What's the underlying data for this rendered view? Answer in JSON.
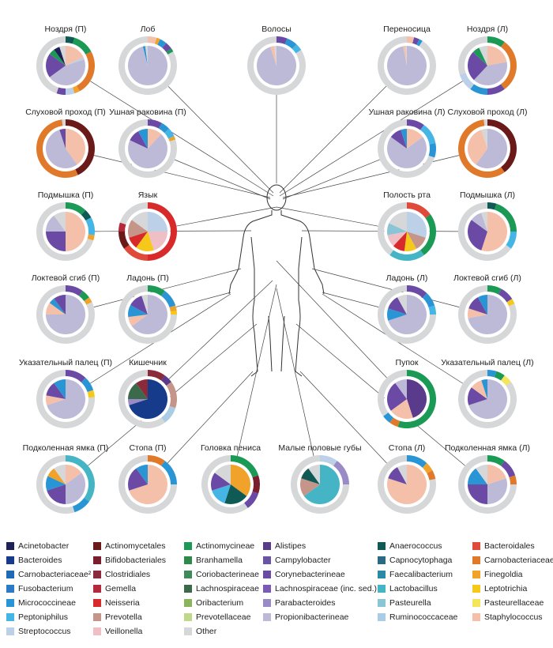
{
  "panels": [
    {
      "label": "Ноздря (П)",
      "pie": [
        [
          "Staphylococcus",
          0.18
        ],
        [
          "Streptococcus",
          0.02
        ],
        [
          "Propionibacterineae",
          0.45
        ],
        [
          "Corynebacterineae",
          0.2
        ],
        [
          "Actinomycineae",
          0.05
        ],
        [
          "Acinetobacter",
          0.05
        ],
        [
          "Other",
          0.05
        ]
      ],
      "ring": [
        [
          "Anaerococcus",
          0.05
        ],
        [
          "Actinomycineae",
          0.12
        ],
        [
          "Carnobacteriaceae",
          0.25
        ],
        [
          "Finegoldia",
          0.03
        ],
        [
          "Streptococcus",
          0.05
        ],
        [
          "Corynebacterineae",
          0.05
        ],
        [
          "Other",
          0.45
        ]
      ]
    },
    {
      "label": "Лоб",
      "pie": [
        [
          "Propionibacterineae",
          0.96
        ],
        [
          "Micrococcineae",
          0.02
        ],
        [
          "Other",
          0.02
        ]
      ],
      "ring": [
        [
          "Staphylococcus",
          0.05
        ],
        [
          "Finegoldia",
          0.02
        ],
        [
          "Micrococcineae",
          0.04
        ],
        [
          "Corynebacterineae",
          0.04
        ],
        [
          "Actinomycineae",
          0.02
        ],
        [
          "Other",
          0.83
        ]
      ]
    },
    {
      "label": "Волосы",
      "pie": [
        [
          "Propionibacterineae",
          0.95
        ],
        [
          "Staphylococcus",
          0.03
        ],
        [
          "Other",
          0.02
        ]
      ],
      "ring": [
        [
          "Corynebacterineae",
          0.06
        ],
        [
          "Micrococcineae",
          0.06
        ],
        [
          "Peptoniphilus",
          0.04
        ],
        [
          "Other",
          0.84
        ]
      ]
    },
    {
      "label": "Переносица",
      "pie": [
        [
          "Propionibacterineae",
          0.97
        ],
        [
          "Staphylococcus",
          0.02
        ],
        [
          "Other",
          0.01
        ]
      ],
      "ring": [
        [
          "Staphylococcus",
          0.04
        ],
        [
          "Corynebacterineae",
          0.03
        ],
        [
          "Micrococcineae",
          0.02
        ],
        [
          "Other",
          0.91
        ]
      ]
    },
    {
      "label": "Ноздря (Л)",
      "pie": [
        [
          "Staphylococcus",
          0.22
        ],
        [
          "Propionibacterineae",
          0.4
        ],
        [
          "Corynebacterineae",
          0.25
        ],
        [
          "Actinomycineae",
          0.06
        ],
        [
          "Other",
          0.07
        ]
      ],
      "ring": [
        [
          "Actinomycineae",
          0.1
        ],
        [
          "Carnobacteriaceae",
          0.3
        ],
        [
          "Corynebacterineae",
          0.1
        ],
        [
          "Micrococcineae",
          0.1
        ],
        [
          "Streptococcus",
          0.1
        ],
        [
          "Other",
          0.3
        ]
      ]
    },
    {
      "label": "Слуховой проход (П)",
      "pie": [
        [
          "Staphylococcus",
          0.4
        ],
        [
          "Propionibacterineae",
          0.55
        ],
        [
          "Corynebacterineae",
          0.05
        ]
      ],
      "ring": [
        [
          "Actinomycetales",
          0.43
        ],
        [
          "Carnobacteriaceae",
          0.55
        ],
        [
          "Other",
          0.02
        ]
      ]
    },
    {
      "label": "Ушная раковина (П)",
      "pie": [
        [
          "Staphylococcus",
          0.12
        ],
        [
          "Propionibacterineae",
          0.7
        ],
        [
          "Corynebacterineae",
          0.1
        ],
        [
          "Micrococcineae",
          0.08
        ]
      ],
      "ring": [
        [
          "Corynebacterineae",
          0.08
        ],
        [
          "Micrococcineae",
          0.05
        ],
        [
          "Peptoniphilus",
          0.05
        ],
        [
          "Finegoldia",
          0.02
        ],
        [
          "Other",
          0.8
        ]
      ]
    },
    {
      "label": "Ушная раковина (Л)",
      "pie": [
        [
          "Staphylococcus",
          0.15
        ],
        [
          "Propionibacterineae",
          0.7
        ],
        [
          "Corynebacterineae",
          0.1
        ],
        [
          "Micrococcineae",
          0.05
        ]
      ],
      "ring": [
        [
          "Corynebacterineae",
          0.1
        ],
        [
          "Peptoniphilus",
          0.12
        ],
        [
          "Micrococcineae",
          0.08
        ],
        [
          "Other",
          0.7
        ]
      ]
    },
    {
      "label": "Слуховой проход (Л)",
      "pie": [
        [
          "Propionibacterineae",
          0.6
        ],
        [
          "Staphylococcus",
          0.35
        ],
        [
          "Other",
          0.05
        ]
      ],
      "ring": [
        [
          "Actinomycetales",
          0.4
        ],
        [
          "Carnobacteriaceae",
          0.58
        ],
        [
          "Other",
          0.02
        ]
      ]
    },
    {
      "label": "Подмышка (П)",
      "pie": [
        [
          "Staphylococcus",
          0.5
        ],
        [
          "Corynebacterineae",
          0.25
        ],
        [
          "Propionibacterineae",
          0.15
        ],
        [
          "Other",
          0.1
        ]
      ],
      "ring": [
        [
          "Actinomycineae",
          0.12
        ],
        [
          "Anaerococcus",
          0.05
        ],
        [
          "Peptoniphilus",
          0.1
        ],
        [
          "Finegoldia",
          0.03
        ],
        [
          "Other",
          0.7
        ]
      ]
    },
    {
      "label": "Язык",
      "pie": [
        [
          "Streptococcus",
          0.25
        ],
        [
          "Veillonella",
          0.2
        ],
        [
          "Leptotrichia",
          0.15
        ],
        [
          "Neisseria",
          0.1
        ],
        [
          "Prevotella",
          0.15
        ],
        [
          "Other",
          0.15
        ]
      ],
      "ring": [
        [
          "Neisseria",
          0.5
        ],
        [
          "Bacteroidales",
          0.15
        ],
        [
          "Actinomycetales",
          0.1
        ],
        [
          "Gemella",
          0.05
        ],
        [
          "Other",
          0.2
        ]
      ]
    },
    {
      "label": "Полость рта",
      "pie": [
        [
          "Streptococcus",
          0.3
        ],
        [
          "Prevotella",
          0.12
        ],
        [
          "Leptotrichia",
          0.1
        ],
        [
          "Neisseria",
          0.1
        ],
        [
          "Veillonella",
          0.1
        ],
        [
          "Pasteurella",
          0.1
        ],
        [
          "Other",
          0.18
        ]
      ],
      "ring": [
        [
          "Bacteroidales",
          0.15
        ],
        [
          "Actinomycineae",
          0.25
        ],
        [
          "Lactobacillus",
          0.2
        ],
        [
          "Other",
          0.4
        ]
      ]
    },
    {
      "label": "Подмышка (Л)",
      "pie": [
        [
          "Staphylococcus",
          0.55
        ],
        [
          "Corynebacterineae",
          0.3
        ],
        [
          "Propionibacterineae",
          0.1
        ],
        [
          "Other",
          0.05
        ]
      ],
      "ring": [
        [
          "Anaerococcus",
          0.05
        ],
        [
          "Actinomycineae",
          0.2
        ],
        [
          "Peptoniphilus",
          0.1
        ],
        [
          "Other",
          0.65
        ]
      ]
    },
    {
      "label": "Локтевой сгиб (П)",
      "pie": [
        [
          "Propionibacterineae",
          0.75
        ],
        [
          "Staphylococcus",
          0.1
        ],
        [
          "Micrococcineae",
          0.05
        ],
        [
          "Corynebacterineae",
          0.1
        ]
      ],
      "ring": [
        [
          "Corynebacterineae",
          0.1
        ],
        [
          "Actinomycineae",
          0.05
        ],
        [
          "Finegoldia",
          0.03
        ],
        [
          "Other",
          0.82
        ]
      ]
    },
    {
      "label": "Ладонь (П)",
      "pie": [
        [
          "Propionibacterineae",
          0.65
        ],
        [
          "Staphylococcus",
          0.08
        ],
        [
          "Micrococcineae",
          0.1
        ],
        [
          "Corynebacterineae",
          0.12
        ],
        [
          "Other",
          0.05
        ]
      ],
      "ring": [
        [
          "Actinomycineae",
          0.1
        ],
        [
          "Micrococcineae",
          0.1
        ],
        [
          "Finegoldia",
          0.03
        ],
        [
          "Leptotrichia",
          0.02
        ],
        [
          "Other",
          0.75
        ]
      ]
    },
    {
      "label": "Ладонь (Л)",
      "pie": [
        [
          "Propionibacterineae",
          0.7
        ],
        [
          "Micrococcineae",
          0.1
        ],
        [
          "Corynebacterineae",
          0.12
        ],
        [
          "Other",
          0.08
        ]
      ],
      "ring": [
        [
          "Corynebacterineae",
          0.12
        ],
        [
          "Micrococcineae",
          0.08
        ],
        [
          "Peptoniphilus",
          0.05
        ],
        [
          "Other",
          0.75
        ]
      ]
    },
    {
      "label": "Локтевой сгиб (Л)",
      "pie": [
        [
          "Propionibacterineae",
          0.72
        ],
        [
          "Staphylococcus",
          0.08
        ],
        [
          "Corynebacterineae",
          0.12
        ],
        [
          "Micrococcineae",
          0.08
        ]
      ],
      "ring": [
        [
          "Actinomycineae",
          0.08
        ],
        [
          "Corynebacterineae",
          0.08
        ],
        [
          "Leptotrichia",
          0.03
        ],
        [
          "Other",
          0.81
        ]
      ]
    },
    {
      "label": "Указательный палец (П)",
      "pie": [
        [
          "Propionibacterineae",
          0.7
        ],
        [
          "Staphylococcus",
          0.08
        ],
        [
          "Corynebacterineae",
          0.12
        ],
        [
          "Micrococcineae",
          0.1
        ]
      ],
      "ring": [
        [
          "Corynebacterineae",
          0.12
        ],
        [
          "Micrococcineae",
          0.08
        ],
        [
          "Leptotrichia",
          0.04
        ],
        [
          "Other",
          0.76
        ]
      ]
    },
    {
      "label": "Кишечник",
      "pie": [
        [
          "Bacteroides",
          0.7
        ],
        [
          "Parabacteroides",
          0.05
        ],
        [
          "Lachnospiraceae",
          0.15
        ],
        [
          "Clostridiales",
          0.1
        ]
      ],
      "ring": [
        [
          "Clostridiales",
          0.1
        ],
        [
          "Alistipes",
          0.05
        ],
        [
          "Prevotella",
          0.15
        ],
        [
          "Ruminococcaceae",
          0.1
        ],
        [
          "Other",
          0.6
        ]
      ]
    },
    {
      "label": "Пупок",
      "pie": [
        [
          "Alistipes",
          0.45
        ],
        [
          "Staphylococcus",
          0.2
        ],
        [
          "Corynebacterineae",
          0.25
        ],
        [
          "Propionibacterineae",
          0.1
        ]
      ],
      "ring": [
        [
          "Actinomycineae",
          0.55
        ],
        [
          "Carnobacteriaceae",
          0.05
        ],
        [
          "Micrococcineae",
          0.05
        ],
        [
          "Other",
          0.35
        ]
      ]
    },
    {
      "label": "Указательный палец (Л)",
      "pie": [
        [
          "Propionibacterineae",
          0.7
        ],
        [
          "Corynebacterineae",
          0.15
        ],
        [
          "Staphylococcus",
          0.1
        ],
        [
          "Micrococcineae",
          0.05
        ]
      ],
      "ring": [
        [
          "Micrococcineae",
          0.05
        ],
        [
          "Actinomycineae",
          0.05
        ],
        [
          "Pasteurellaceae",
          0.05
        ],
        [
          "Other",
          0.85
        ]
      ]
    },
    {
      "label": "Подколенная ямка (П)",
      "pie": [
        [
          "Staphylococcus",
          0.15
        ],
        [
          "Propionibacterineae",
          0.35
        ],
        [
          "Corynebacterineae",
          0.2
        ],
        [
          "Micrococcineae",
          0.12
        ],
        [
          "Finegoldia",
          0.08
        ],
        [
          "Other",
          0.1
        ]
      ],
      "ring": [
        [
          "Lactobacillus",
          0.35
        ],
        [
          "Micrococcineae",
          0.1
        ],
        [
          "Other",
          0.55
        ]
      ]
    },
    {
      "label": "Стопа (П)",
      "pie": [
        [
          "Staphylococcus",
          0.7
        ],
        [
          "Corynebacterineae",
          0.2
        ],
        [
          "Micrococcineae",
          0.1
        ]
      ],
      "ring": [
        [
          "Carnobacteriaceae",
          0.1
        ],
        [
          "Micrococcineae",
          0.15
        ],
        [
          "Other",
          0.75
        ]
      ]
    },
    {
      "label": "Головка пениса",
      "pie": [
        [
          "Finegoldia",
          0.35
        ],
        [
          "Anaerococcus",
          0.2
        ],
        [
          "Peptoniphilus",
          0.15
        ],
        [
          "Corynebacterineae",
          0.15
        ],
        [
          "Other",
          0.15
        ]
      ],
      "ring": [
        [
          "Actinomycineae",
          0.2
        ],
        [
          "Bifidobacteriales",
          0.1
        ],
        [
          "Corynebacterineae",
          0.1
        ],
        [
          "Other",
          0.6
        ]
      ]
    },
    {
      "label": "Малые половые губы",
      "pie": [
        [
          "Lactobacillus",
          0.65
        ],
        [
          "Prevotella",
          0.15
        ],
        [
          "Anaerococcus",
          0.1
        ],
        [
          "Other",
          0.1
        ]
      ],
      "ring": [
        [
          "Streptococcus",
          0.1
        ],
        [
          "Parabacteroides",
          0.15
        ],
        [
          "Other",
          0.75
        ]
      ]
    },
    {
      "label": "Стопа (Л)",
      "pie": [
        [
          "Staphylococcus",
          0.8
        ],
        [
          "Corynebacterineae",
          0.12
        ],
        [
          "Other",
          0.08
        ]
      ],
      "ring": [
        [
          "Micrococcineae",
          0.12
        ],
        [
          "Finegoldia",
          0.05
        ],
        [
          "Carnobacteriaceae",
          0.05
        ],
        [
          "Other",
          0.78
        ]
      ]
    },
    {
      "label": "Подколенная ямка (Л)",
      "pie": [
        [
          "Staphylococcus",
          0.2
        ],
        [
          "Propionibacterineae",
          0.3
        ],
        [
          "Corynebacterineae",
          0.25
        ],
        [
          "Micrococcineae",
          0.15
        ],
        [
          "Other",
          0.1
        ]
      ],
      "ring": [
        [
          "Actinomycineae",
          0.1
        ],
        [
          "Corynebacterineae",
          0.1
        ],
        [
          "Carnobacteriaceae",
          0.05
        ],
        [
          "Other",
          0.75
        ]
      ]
    }
  ],
  "legend": [
    [
      "Acinetobacter",
      "#1f2257"
    ],
    [
      "Actinomycetales",
      "#6b1a1a"
    ],
    [
      "Actinomycineae",
      "#1a9a55"
    ],
    [
      "Alistipes",
      "#5a3a8a"
    ],
    [
      "Anaerococcus",
      "#0f5a55"
    ],
    [
      "Bacteroidales",
      "#e04a3a"
    ],
    [
      "Bacteroides",
      "#153b8a"
    ],
    [
      "Bifidobacteriales",
      "#7a1e2e"
    ],
    [
      "Branhamella",
      "#2e8a4a"
    ],
    [
      "Campylobacter",
      "#6a55a5"
    ],
    [
      "Capnocytophaga",
      "#2a6a85"
    ],
    [
      "Carnobacteriaceae",
      "#e07a2a"
    ],
    [
      "Carnobacteriaceae²",
      "#1f6ab5"
    ],
    [
      "Clostridiales",
      "#8a2a3a"
    ],
    [
      "Coriobacterineae",
      "#3f8a5a"
    ],
    [
      "Corynebacterineae",
      "#6a4aa5"
    ],
    [
      "Faecalibacterium",
      "#2a8aa5"
    ],
    [
      "Finegoldia",
      "#f0a22a"
    ],
    [
      "Fusobacterium",
      "#2a7ac5"
    ],
    [
      "Gemella",
      "#b52a3a"
    ],
    [
      "Lachnospiraceae",
      "#3a6a4a"
    ],
    [
      "Lachnospiraceae (inc. sed.)",
      "#7a5ab5"
    ],
    [
      "Lactobacillus",
      "#45b5c5"
    ],
    [
      "Leptotrichia",
      "#f5c81a"
    ],
    [
      "Micrococcineae",
      "#2a95d5"
    ],
    [
      "Neisseria",
      "#d82a2a"
    ],
    [
      "Oribacterium",
      "#8ab55a"
    ],
    [
      "Parabacteroides",
      "#9a8ac5"
    ],
    [
      "Pasteurella",
      "#8ac5d5"
    ],
    [
      "Pasteurellaceae",
      "#f5e55a"
    ],
    [
      "Peptoniphilus",
      "#45b5e5"
    ],
    [
      "Prevotella",
      "#c5958a"
    ],
    [
      "Prevotellaceae",
      "#bfd88a"
    ],
    [
      "Propionibacterineae",
      "#bdbad8"
    ],
    [
      "Ruminococcaceae",
      "#aacde5"
    ],
    [
      "Staphylococcus",
      "#f5c0aa"
    ],
    [
      "Streptococcus",
      "#bcd0e8"
    ],
    [
      "Veillonella",
      "#f0bfc5"
    ],
    [
      "Other",
      "#d6d7d8"
    ]
  ]
}
